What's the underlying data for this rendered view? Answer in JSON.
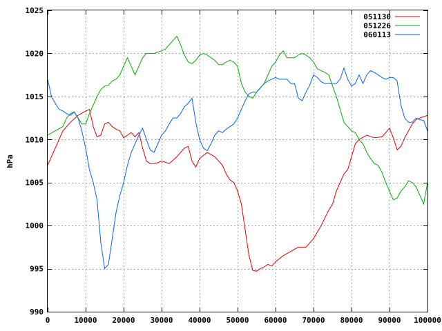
{
  "chart_data": {
    "type": "line",
    "title": "",
    "xlabel": "",
    "ylabel": "hPa",
    "xlim": [
      0,
      100000
    ],
    "ylim": [
      990,
      1025
    ],
    "grid": true,
    "legend_position": "top-right",
    "x_ticks": [
      0,
      10000,
      20000,
      30000,
      40000,
      50000,
      60000,
      70000,
      80000,
      90000,
      100000
    ],
    "y_ticks": [
      990,
      995,
      1000,
      1005,
      1010,
      1015,
      1020,
      1025
    ],
    "series": [
      {
        "name": "051130",
        "color": "#dd0000",
        "x": [
          0,
          2000,
          4000,
          6000,
          8000,
          10000,
          11000,
          12000,
          13000,
          14000,
          15000,
          16000,
          17000,
          18000,
          19000,
          20000,
          21000,
          22000,
          23000,
          24000,
          25000,
          26000,
          27000,
          28000,
          29000,
          30000,
          32000,
          34000,
          36000,
          37000,
          38000,
          39000,
          40000,
          42000,
          44000,
          46000,
          47000,
          48000,
          49000,
          50000,
          51000,
          52000,
          53000,
          54000,
          55000,
          56000,
          57000,
          58000,
          59000,
          60000,
          62000,
          64000,
          66000,
          68000,
          70000,
          72000,
          74000,
          75000,
          76000,
          77000,
          78000,
          79000,
          80000,
          81000,
          82000,
          84000,
          86000,
          88000,
          89000,
          90000,
          91000,
          92000,
          93000,
          94000,
          95000,
          96000,
          97000,
          98000,
          100000
        ],
        "values": [
          1007,
          1009,
          1011,
          1012,
          1012.8,
          1013.3,
          1013.5,
          1011.5,
          1010.3,
          1010.5,
          1011.8,
          1012,
          1011.5,
          1011.2,
          1011,
          1010.2,
          1010.5,
          1010.8,
          1010.3,
          1010.8,
          1009,
          1007.5,
          1007.2,
          1007.2,
          1007.3,
          1007.5,
          1007.2,
          1008,
          1009,
          1009.2,
          1007.5,
          1006.8,
          1007.8,
          1008.5,
          1008,
          1007,
          1006,
          1005.3,
          1005,
          1004,
          1002.5,
          999.5,
          996.5,
          994.8,
          994.7,
          995,
          995.2,
          995.5,
          995.3,
          995.8,
          996.5,
          997,
          997.5,
          997.5,
          998.5,
          1000,
          1001.8,
          1002.5,
          1004,
          1005,
          1006,
          1006.5,
          1008,
          1009.5,
          1010,
          1010.5,
          1010.2,
          1010.3,
          1010.8,
          1011.3,
          1010.2,
          1008.8,
          1009.2,
          1010.2,
          1011,
          1011.8,
          1012.3,
          1012.5,
          1012.8
        ]
      },
      {
        "name": "051226",
        "color": "#00aa00",
        "x": [
          0,
          2000,
          4000,
          5000,
          6000,
          7000,
          8000,
          9000,
          10000,
          11000,
          12000,
          13000,
          14000,
          15000,
          16000,
          17000,
          18000,
          19000,
          20000,
          21000,
          22000,
          23000,
          24000,
          25000,
          26000,
          27000,
          28000,
          30000,
          31000,
          32000,
          33000,
          34000,
          35000,
          36000,
          37000,
          38000,
          39000,
          40000,
          41000,
          42000,
          43000,
          44000,
          45000,
          46000,
          47000,
          48000,
          49000,
          50000,
          51000,
          52000,
          53000,
          54000,
          55000,
          56000,
          57000,
          58000,
          59000,
          60000,
          61000,
          62000,
          63000,
          64000,
          65000,
          66000,
          67000,
          68000,
          69000,
          70000,
          71000,
          72000,
          73000,
          74000,
          75000,
          76000,
          77000,
          78000,
          79000,
          80000,
          81000,
          82000,
          83000,
          84000,
          85000,
          86000,
          87000,
          88000,
          89000,
          90000,
          91000,
          92000,
          93000,
          94000,
          95000,
          96000,
          97000,
          98000,
          99000,
          100000
        ],
        "values": [
          1010.5,
          1011,
          1011.5,
          1012.5,
          1013,
          1013.2,
          1012.5,
          1011.8,
          1011.8,
          1013,
          1014,
          1015,
          1015.8,
          1016.2,
          1016.3,
          1016.8,
          1017,
          1017.5,
          1018.5,
          1019.5,
          1018.5,
          1017.5,
          1018.5,
          1019.5,
          1020,
          1020,
          1020,
          1020.3,
          1020.5,
          1021,
          1021.5,
          1022,
          1021,
          1019.8,
          1019,
          1018.8,
          1019.2,
          1019.8,
          1020,
          1019.8,
          1019.5,
          1019.2,
          1018.7,
          1018.7,
          1019,
          1019.2,
          1019,
          1018.5,
          1016.5,
          1015.5,
          1015,
          1014.8,
          1015.5,
          1016,
          1016.5,
          1017.5,
          1018.5,
          1019,
          1019.8,
          1020.3,
          1019.5,
          1019.5,
          1019.5,
          1019.8,
          1020,
          1019.8,
          1019.5,
          1019,
          1018.2,
          1018,
          1017.8,
          1017.5,
          1016.2,
          1015,
          1013.5,
          1012,
          1011.5,
          1011,
          1010.8,
          1010,
          1009.5,
          1008.5,
          1007.8,
          1007.2,
          1007,
          1006.2,
          1005,
          1004,
          1003,
          1003.2,
          1004,
          1004.5,
          1005.2,
          1005,
          1004.5,
          1003.5,
          1002.5,
          1005
        ]
      },
      {
        "name": "060113",
        "color": "#0066dd",
        "x": [
          0,
          1000,
          2000,
          3000,
          4000,
          5000,
          6000,
          7000,
          8000,
          9000,
          10000,
          11000,
          12000,
          13000,
          14000,
          15000,
          16000,
          17000,
          18000,
          19000,
          20000,
          21000,
          22000,
          23000,
          24000,
          25000,
          26000,
          27000,
          28000,
          29000,
          30000,
          31000,
          32000,
          33000,
          34000,
          35000,
          36000,
          37000,
          38000,
          39000,
          40000,
          41000,
          42000,
          43000,
          44000,
          45000,
          46000,
          47000,
          48000,
          49000,
          50000,
          51000,
          52000,
          53000,
          54000,
          55000,
          56000,
          57000,
          58000,
          59000,
          60000,
          61000,
          62000,
          63000,
          64000,
          65000,
          66000,
          67000,
          68000,
          69000,
          70000,
          71000,
          72000,
          73000,
          74000,
          75000,
          76000,
          77000,
          78000,
          79000,
          80000,
          81000,
          82000,
          83000,
          84000,
          85000,
          86000,
          87000,
          88000,
          89000,
          90000,
          91000,
          92000,
          93000,
          94000,
          95000,
          96000,
          97000,
          98000,
          99000,
          100000
        ],
        "values": [
          1017,
          1015,
          1014.2,
          1013.5,
          1013.3,
          1013,
          1012.8,
          1013.2,
          1012.5,
          1011,
          1009,
          1006.5,
          1005,
          1003,
          998,
          995,
          995.5,
          998.5,
          1001.5,
          1003.5,
          1005,
          1007,
          1008.5,
          1009.5,
          1010.5,
          1011.3,
          1010,
          1008.8,
          1008.5,
          1009.5,
          1010.5,
          1011,
          1011.8,
          1012.5,
          1012.5,
          1013,
          1013.8,
          1014.2,
          1014.8,
          1012,
          1010,
          1009,
          1008.7,
          1009.5,
          1010.5,
          1011,
          1010.8,
          1011.2,
          1011.5,
          1011.8,
          1012.5,
          1013.5,
          1014.5,
          1015.3,
          1015.5,
          1015.5,
          1016,
          1016.5,
          1016.8,
          1017,
          1017.2,
          1017,
          1017,
          1017,
          1016.5,
          1016.5,
          1014.8,
          1014.5,
          1015.5,
          1016.3,
          1017.5,
          1017.2,
          1016.7,
          1016.5,
          1016.5,
          1016.5,
          1016.5,
          1017,
          1018.3,
          1017,
          1016.2,
          1016.5,
          1017.5,
          1016.5,
          1017.5,
          1018,
          1017.8,
          1017.5,
          1017.2,
          1017,
          1017.2,
          1017.2,
          1016.8,
          1014,
          1012.5,
          1012,
          1012,
          1012.5,
          1012.3,
          1012.2,
          1011
        ]
      }
    ]
  }
}
